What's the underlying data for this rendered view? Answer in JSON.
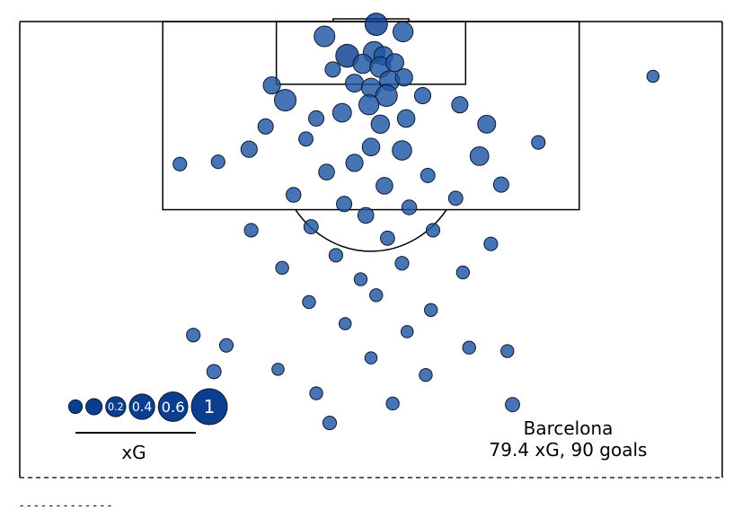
{
  "chart_data": {
    "type": "scatter",
    "title": "",
    "team": "Barcelona",
    "summary": "79.4 xG, 90 goals",
    "legend": {
      "title": "xG",
      "sizes": [
        0.05,
        0.1,
        0.2,
        0.4,
        0.6,
        1
      ],
      "labels": [
        "",
        "",
        "0.2",
        "0.4",
        "0.6",
        "1"
      ]
    },
    "colors": {
      "marker_fill": "#1f56a3",
      "marker_fill_large": "#0b3d91",
      "marker_edge": "#0d1b2e",
      "pitch_lines": "#000000"
    },
    "pitch": {
      "length_m": 40,
      "width_m": 68,
      "view": "attacking half, goal at top"
    },
    "shots": [
      {
        "x": 0.51,
        "y": 0.24,
        "xg": 0.28
      },
      {
        "x": -4.5,
        "y": 1.3,
        "xg": 0.22
      },
      {
        "x": 3.1,
        "y": 0.9,
        "xg": 0.2
      },
      {
        "x": -2.3,
        "y": 3.0,
        "xg": 0.3
      },
      {
        "x": 0.3,
        "y": 2.7,
        "xg": 0.25
      },
      {
        "x": 1.2,
        "y": 3.0,
        "xg": 0.16
      },
      {
        "x": -0.8,
        "y": 3.7,
        "xg": 0.18
      },
      {
        "x": 0.9,
        "y": 4.0,
        "xg": 0.22
      },
      {
        "x": 2.3,
        "y": 3.6,
        "xg": 0.14
      },
      {
        "x": -3.7,
        "y": 4.2,
        "xg": 0.08
      },
      {
        "x": 1.8,
        "y": 5.2,
        "xg": 0.2
      },
      {
        "x": 3.2,
        "y": 4.9,
        "xg": 0.12
      },
      {
        "x": -1.6,
        "y": 5.4,
        "xg": 0.14
      },
      {
        "x": 0.0,
        "y": 5.8,
        "xg": 0.17
      },
      {
        "x": -9.6,
        "y": 5.6,
        "xg": 0.12
      },
      {
        "x": 1.5,
        "y": 6.5,
        "xg": 0.25
      },
      {
        "x": -0.2,
        "y": 7.3,
        "xg": 0.2
      },
      {
        "x": 5.0,
        "y": 6.5,
        "xg": 0.1
      },
      {
        "x": -8.3,
        "y": 6.9,
        "xg": 0.25
      },
      {
        "x": 8.6,
        "y": 7.3,
        "xg": 0.1
      },
      {
        "x": -2.8,
        "y": 8.0,
        "xg": 0.16
      },
      {
        "x": 3.4,
        "y": 8.5,
        "xg": 0.13
      },
      {
        "x": -5.3,
        "y": 8.5,
        "xg": 0.08
      },
      {
        "x": 0.9,
        "y": 9.0,
        "xg": 0.15
      },
      {
        "x": 11.2,
        "y": 9.0,
        "xg": 0.14
      },
      {
        "x": -10.2,
        "y": 9.2,
        "xg": 0.08
      },
      {
        "x": -6.3,
        "y": 10.3,
        "xg": 0.06
      },
      {
        "x": 0.0,
        "y": 11.0,
        "xg": 0.13
      },
      {
        "x": 3.0,
        "y": 11.3,
        "xg": 0.18
      },
      {
        "x": -11.8,
        "y": 11.2,
        "xg": 0.1
      },
      {
        "x": 10.5,
        "y": 11.8,
        "xg": 0.16
      },
      {
        "x": -1.6,
        "y": 12.4,
        "xg": 0.12
      },
      {
        "x": -4.3,
        "y": 13.2,
        "xg": 0.09
      },
      {
        "x": 5.5,
        "y": 13.5,
        "xg": 0.06
      },
      {
        "x": -14.8,
        "y": 12.3,
        "xg": 0.05
      },
      {
        "x": 1.3,
        "y": 14.4,
        "xg": 0.11
      },
      {
        "x": 12.6,
        "y": 14.3,
        "xg": 0.08
      },
      {
        "x": -7.5,
        "y": 15.2,
        "xg": 0.07
      },
      {
        "x": 8.2,
        "y": 15.5,
        "xg": 0.06
      },
      {
        "x": -2.6,
        "y": 16.0,
        "xg": 0.08
      },
      {
        "x": 3.7,
        "y": 16.3,
        "xg": 0.07
      },
      {
        "x": -18.5,
        "y": 12.5,
        "xg": 0.05
      },
      {
        "x": 16.2,
        "y": 10.6,
        "xg": 0.05
      },
      {
        "x": -0.5,
        "y": 17.0,
        "xg": 0.09
      },
      {
        "x": -5.8,
        "y": 18.0,
        "xg": 0.06
      },
      {
        "x": 6.0,
        "y": 18.3,
        "xg": 0.05
      },
      {
        "x": 1.6,
        "y": 19.0,
        "xg": 0.06
      },
      {
        "x": -11.6,
        "y": 18.3,
        "xg": 0.05
      },
      {
        "x": 11.6,
        "y": 19.5,
        "xg": 0.05
      },
      {
        "x": -3.4,
        "y": 20.5,
        "xg": 0.05
      },
      {
        "x": 3.0,
        "y": 21.2,
        "xg": 0.05
      },
      {
        "x": -8.6,
        "y": 21.6,
        "xg": 0.04
      },
      {
        "x": 8.9,
        "y": 22.0,
        "xg": 0.04
      },
      {
        "x": -1.0,
        "y": 22.6,
        "xg": 0.04
      },
      {
        "x": 0.5,
        "y": 24.0,
        "xg": 0.04
      },
      {
        "x": -6.0,
        "y": 24.6,
        "xg": 0.04
      },
      {
        "x": 5.8,
        "y": 25.3,
        "xg": 0.04
      },
      {
        "x": -2.5,
        "y": 26.5,
        "xg": 0.03
      },
      {
        "x": 3.5,
        "y": 27.2,
        "xg": 0.03
      },
      {
        "x": -17.2,
        "y": 27.5,
        "xg": 0.05
      },
      {
        "x": -14.0,
        "y": 28.4,
        "xg": 0.05
      },
      {
        "x": 9.5,
        "y": 28.6,
        "xg": 0.04
      },
      {
        "x": 13.2,
        "y": 28.9,
        "xg": 0.04
      },
      {
        "x": 0.0,
        "y": 29.5,
        "xg": 0.03
      },
      {
        "x": -9.0,
        "y": 30.5,
        "xg": 0.03
      },
      {
        "x": 5.3,
        "y": 31.0,
        "xg": 0.04
      },
      {
        "x": -15.2,
        "y": 30.7,
        "xg": 0.06
      },
      {
        "x": -4.0,
        "y": 35.2,
        "xg": 0.05
      },
      {
        "x": 13.7,
        "y": 33.6,
        "xg": 0.06
      },
      {
        "x": -5.3,
        "y": 32.6,
        "xg": 0.04
      },
      {
        "x": 2.1,
        "y": 33.5,
        "xg": 0.04
      },
      {
        "x": 27.3,
        "y": 4.8,
        "xg": 0.03
      }
    ]
  }
}
